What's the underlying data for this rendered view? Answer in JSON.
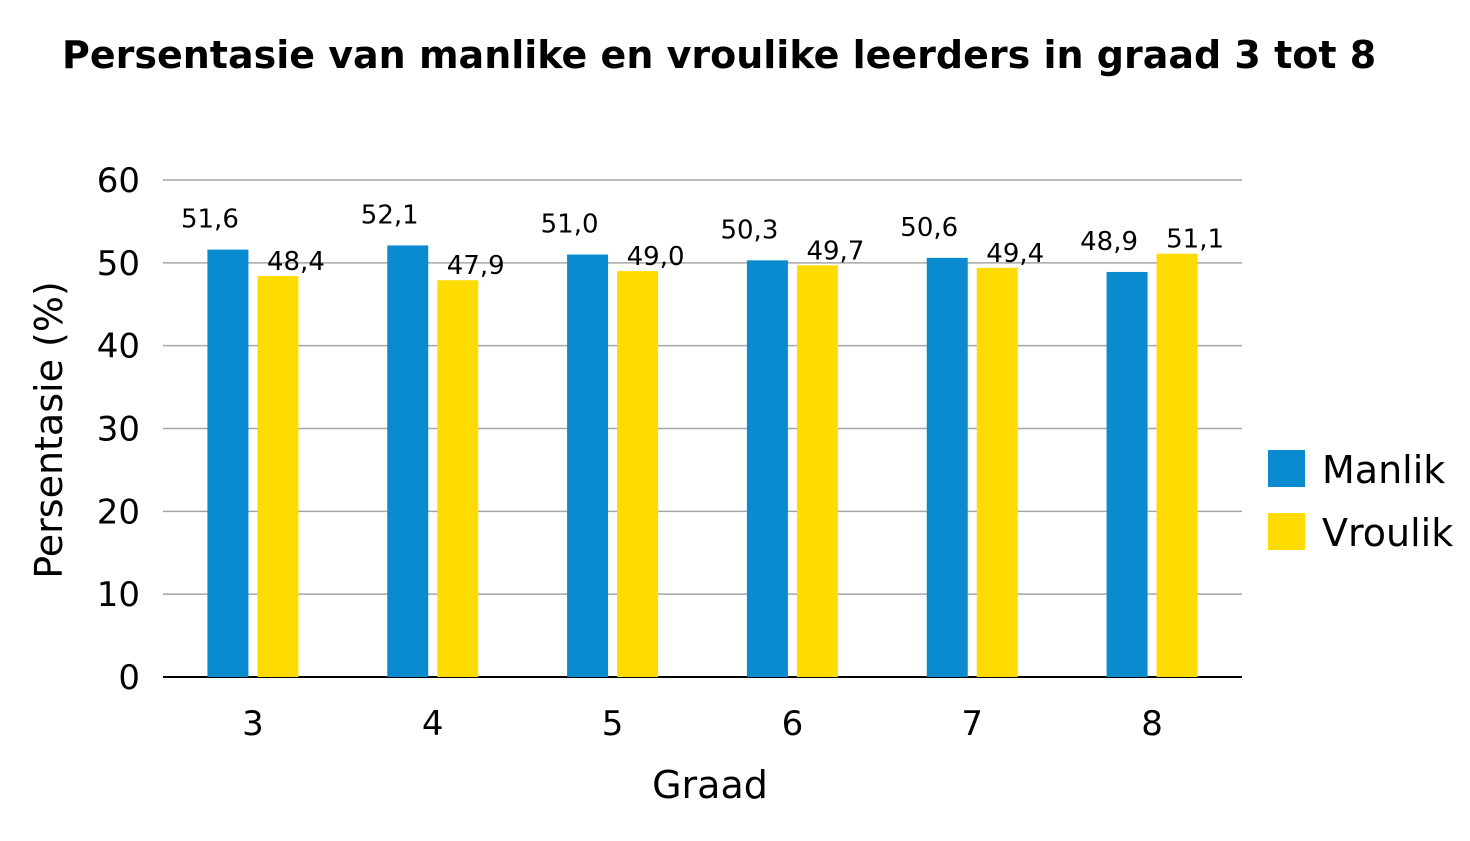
{
  "chart_data": {
    "type": "bar",
    "title": "Persentasie van manlike en vroulike leerders in graad 3 tot 8",
    "xlabel": "Graad",
    "ylabel": "Persentasie (%)",
    "categories": [
      "3",
      "4",
      "5",
      "6",
      "7",
      "8"
    ],
    "ylim": [
      0,
      60
    ],
    "yticks": [
      "0",
      "10",
      "20",
      "30",
      "40",
      "50",
      "60"
    ],
    "grid": true,
    "legend_position": "right",
    "series": [
      {
        "name": "Manlik",
        "color": "#0a8bd0",
        "values": [
          51.6,
          52.1,
          51.0,
          50.3,
          50.6,
          48.9
        ],
        "labels": [
          "51,6",
          "52,1",
          "51,0",
          "50,3",
          "50,6",
          "48,9"
        ]
      },
      {
        "name": "Vroulik",
        "color": "#ffdc00",
        "values": [
          48.4,
          47.9,
          49.0,
          49.7,
          49.4,
          51.1
        ],
        "labels": [
          "48,4",
          "47,9",
          "49,0",
          "49,7",
          "49,4",
          "51,1"
        ]
      }
    ]
  }
}
